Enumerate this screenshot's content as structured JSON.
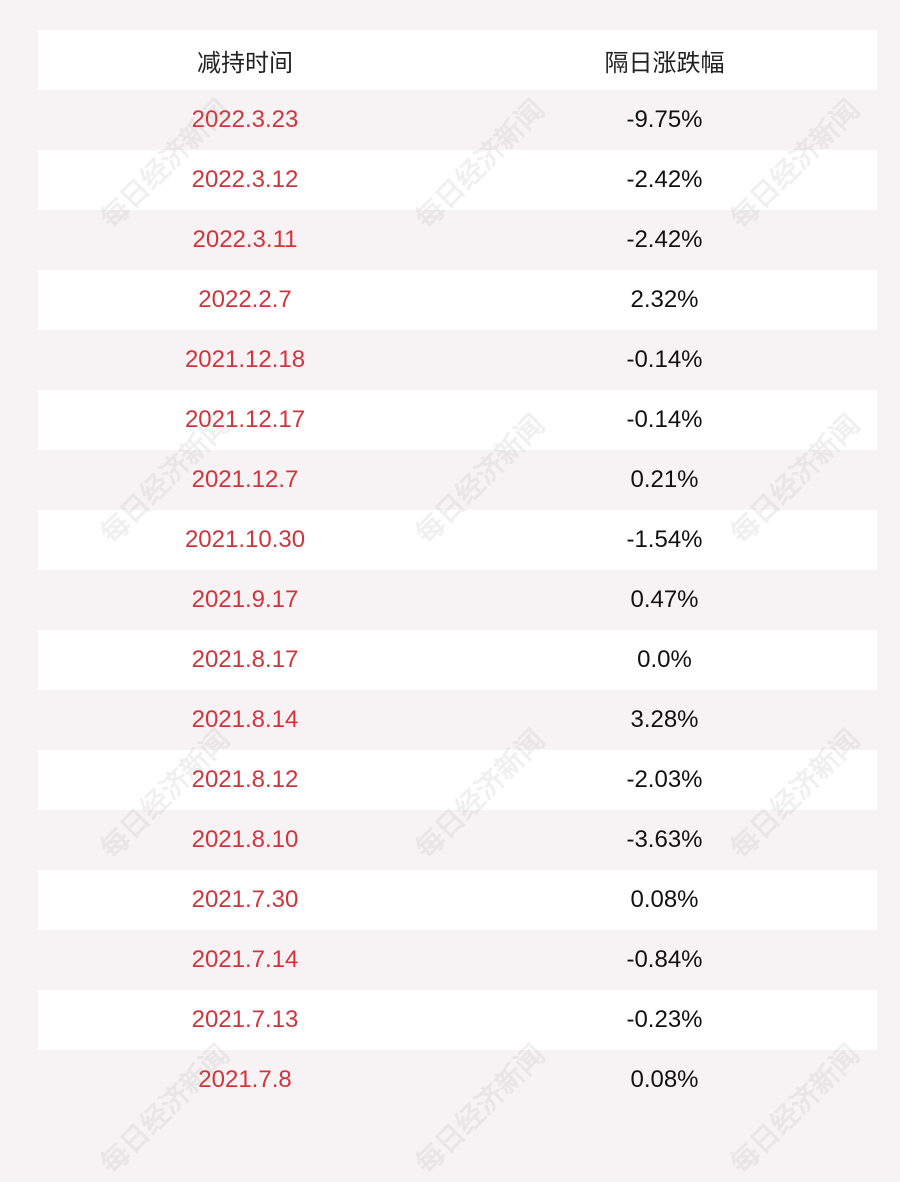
{
  "table": {
    "header": [
      "减持时间",
      "隔日涨跌幅"
    ],
    "rows": [
      [
        "2022.3.23",
        "-9.75%"
      ],
      [
        "2022.3.12",
        "-2.42%"
      ],
      [
        "2022.3.11",
        "-2.42%"
      ],
      [
        "2022.2.7",
        "2.32%"
      ],
      [
        "2021.12.18",
        "-0.14%"
      ],
      [
        "2021.12.17",
        "-0.14%"
      ],
      [
        "2021.12.7",
        "0.21%"
      ],
      [
        "2021.10.30",
        "-1.54%"
      ],
      [
        "2021.9.17",
        "0.47%"
      ],
      [
        "2021.8.17",
        "0.0%"
      ],
      [
        "2021.8.14",
        "3.28%"
      ],
      [
        "2021.8.12",
        "-2.03%"
      ],
      [
        "2021.8.10",
        "-3.63%"
      ],
      [
        "2021.7.30",
        "0.08%"
      ],
      [
        "2021.7.14",
        "-0.84%"
      ],
      [
        "2021.7.13",
        "-0.23%"
      ],
      [
        "2021.7.8",
        "0.08%"
      ]
    ]
  },
  "watermark": "每日经济新闻"
}
